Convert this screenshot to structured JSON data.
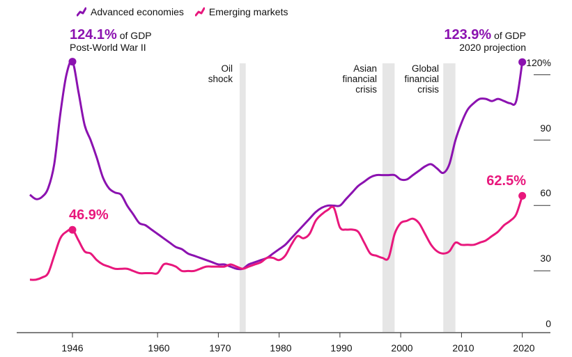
{
  "colors": {
    "advanced": "#8b12b0",
    "emerging": "#e8177c",
    "shade": "#e6e6e6",
    "axis": "#333333"
  },
  "legend": {
    "advanced": "Advanced economies",
    "emerging": "Emerging markets"
  },
  "annotations": {
    "adv_peak_value": "124.1%",
    "adv_peak_suffix": " of GDP",
    "adv_peak_note": "Post-World War II",
    "adv_end_value": "123.9%",
    "adv_end_suffix": " of GDP",
    "adv_end_note": "2020 projection",
    "em_peak_value": "46.9%",
    "em_end_value": "62.5%"
  },
  "chart_data": {
    "type": "line",
    "xlabel": "",
    "ylabel": "",
    "xlim": [
      1938.5,
      2024.5
    ],
    "ylim": [
      0,
      120
    ],
    "y_ticks": [
      {
        "value": 0,
        "label": "0"
      },
      {
        "value": 30,
        "label": "30"
      },
      {
        "value": 60,
        "label": "60"
      },
      {
        "value": 90,
        "label": "90"
      },
      {
        "value": 120,
        "label": "120%"
      }
    ],
    "x_ticks": [
      {
        "value": 1946,
        "label": "1946"
      },
      {
        "value": 1960,
        "label": "1960"
      },
      {
        "value": 1970,
        "label": "1970"
      },
      {
        "value": 1980,
        "label": "1980"
      },
      {
        "value": 1990,
        "label": "1990"
      },
      {
        "value": 2000,
        "label": "2000"
      },
      {
        "value": 2010,
        "label": "2010"
      },
      {
        "value": 2020,
        "label": "2020"
      }
    ],
    "shaded_periods": [
      {
        "label": "Oil shock",
        "start": 1973.5,
        "end": 1974.5
      },
      {
        "label": "Asian financial crisis",
        "start": 1997,
        "end": 1999
      },
      {
        "label": "Global financial crisis",
        "start": 2007,
        "end": 2009
      }
    ],
    "series": [
      {
        "name": "Advanced economies",
        "color_key": "advanced",
        "x": [
          1939,
          1940,
          1941,
          1942,
          1943,
          1944,
          1945,
          1946,
          1947,
          1948,
          1949,
          1950,
          1951,
          1952,
          1953,
          1954,
          1955,
          1956,
          1957,
          1958,
          1959,
          1960,
          1961,
          1962,
          1963,
          1964,
          1965,
          1966,
          1967,
          1968,
          1969,
          1970,
          1971,
          1972,
          1973,
          1974,
          1975,
          1976,
          1977,
          1978,
          1979,
          1980,
          1981,
          1982,
          1983,
          1984,
          1985,
          1986,
          1987,
          1988,
          1989,
          1990,
          1991,
          1992,
          1993,
          1994,
          1995,
          1996,
          1997,
          1998,
          1999,
          2000,
          2001,
          2002,
          2003,
          2004,
          2005,
          2006,
          2007,
          2008,
          2009,
          2010,
          2011,
          2012,
          2013,
          2014,
          2015,
          2016,
          2017,
          2018,
          2019,
          2020
        ],
        "values": [
          63,
          61,
          62,
          66,
          77,
          100,
          118,
          124.1,
          110,
          95,
          88,
          80,
          71,
          66,
          64,
          63,
          58,
          54,
          50,
          49,
          47,
          45,
          43,
          41,
          39,
          38,
          36,
          35,
          34,
          33,
          32,
          31,
          31,
          30,
          29,
          29,
          31,
          32,
          33,
          34,
          36,
          38,
          40,
          43,
          46,
          49,
          52,
          55,
          57,
          58,
          58,
          58,
          61,
          64,
          67,
          69,
          71,
          72,
          72,
          72,
          72,
          70,
          70,
          72,
          74,
          76,
          77,
          75,
          73,
          77,
          88,
          96,
          102,
          105,
          107,
          107,
          106,
          107,
          106,
          105,
          106,
          123.9
        ]
      },
      {
        "name": "Emerging markets",
        "color_key": "emerging",
        "x": [
          1939,
          1940,
          1941,
          1942,
          1943,
          1944,
          1945,
          1946,
          1947,
          1948,
          1949,
          1950,
          1951,
          1952,
          1953,
          1954,
          1955,
          1956,
          1957,
          1958,
          1959,
          1960,
          1961,
          1962,
          1963,
          1964,
          1965,
          1966,
          1967,
          1968,
          1969,
          1970,
          1971,
          1972,
          1973,
          1974,
          1975,
          1976,
          1977,
          1978,
          1979,
          1980,
          1981,
          1982,
          1983,
          1984,
          1985,
          1986,
          1987,
          1988,
          1989,
          1990,
          1991,
          1992,
          1993,
          1994,
          1995,
          1996,
          1997,
          1998,
          1999,
          2000,
          2001,
          2002,
          2003,
          2004,
          2005,
          2006,
          2007,
          2008,
          2009,
          2010,
          2011,
          2012,
          2013,
          2014,
          2015,
          2016,
          2017,
          2018,
          2019,
          2020
        ],
        "values": [
          24,
          24,
          25,
          27,
          35,
          43,
          46,
          46.9,
          42,
          37,
          36,
          33,
          31,
          30,
          29,
          29,
          29,
          28,
          27,
          27,
          27,
          27,
          31,
          31,
          30,
          28,
          28,
          28,
          29,
          30,
          30,
          30,
          30,
          31,
          30,
          29,
          30,
          31,
          32,
          34,
          34,
          33,
          35,
          40,
          44,
          43,
          45,
          51,
          54,
          56,
          57,
          48,
          47,
          47,
          46,
          41,
          36,
          35,
          34,
          34,
          45,
          50,
          51,
          52,
          50,
          45,
          40,
          37,
          36,
          37,
          41,
          40,
          40,
          40,
          41,
          42,
          44,
          46,
          49,
          51,
          54,
          62.5
        ]
      }
    ]
  }
}
